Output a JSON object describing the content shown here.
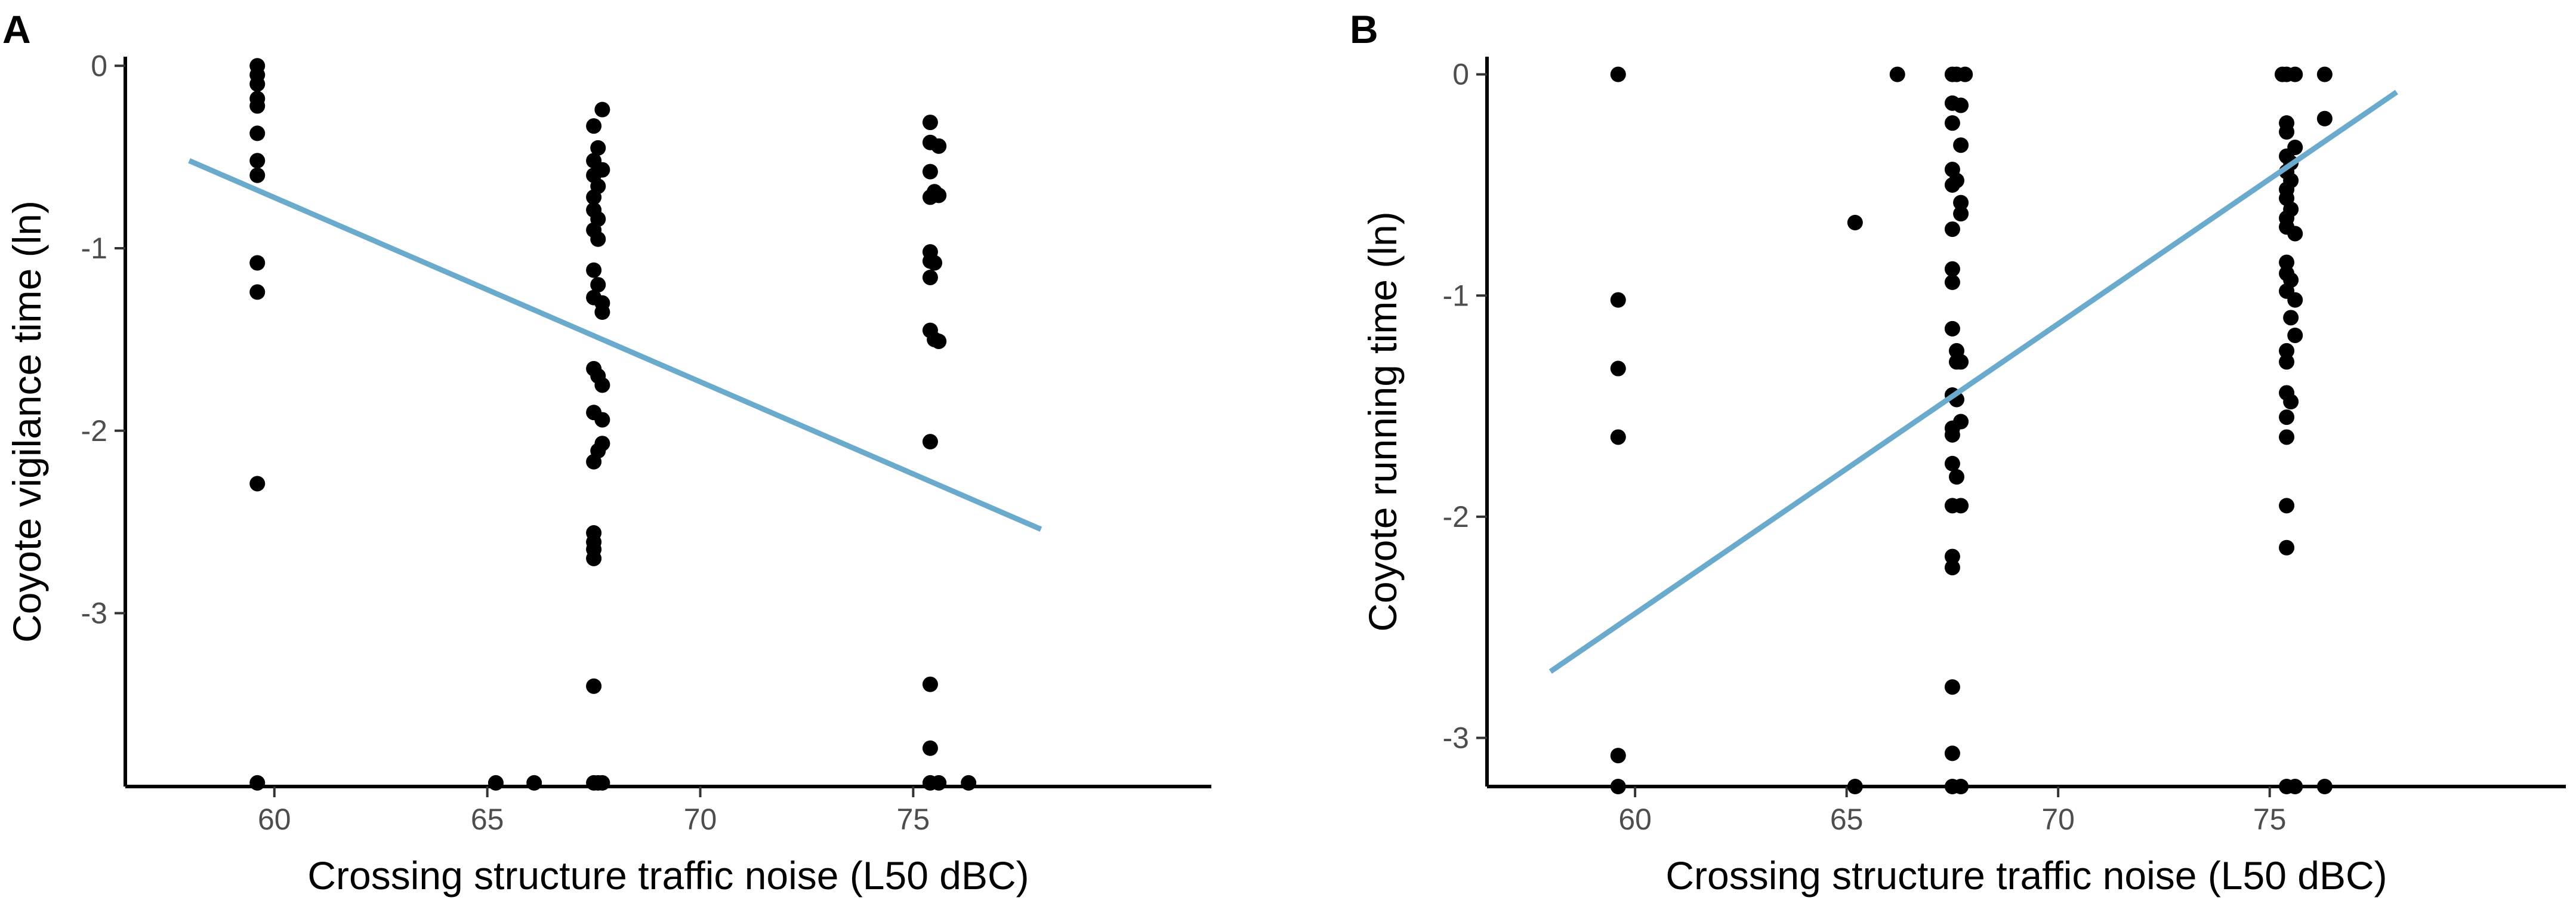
{
  "chart_data": [
    {
      "panel_label": "A",
      "type": "scatter",
      "title": "",
      "xlabel": "Crossing structure traffic noise (L50 dBC)",
      "ylabel": "Coyote vigilance time (ln)",
      "xlim": [
        56.5,
        82
      ],
      "ylim": [
        -3.95,
        0.05
      ],
      "xticks": [
        60,
        65,
        70,
        75
      ],
      "yticks": [
        0,
        -1,
        -2,
        -3
      ],
      "xtick_labels": [
        "60",
        "65",
        "70",
        "75"
      ],
      "ytick_labels": [
        "0",
        "-1",
        "-2",
        "-3"
      ],
      "grid": false,
      "points_color": "#000000",
      "fit_color": "#6aaacd",
      "points": [
        {
          "x": 59.6,
          "y": 0
        },
        {
          "x": 59.6,
          "y": -0.05
        },
        {
          "x": 59.6,
          "y": -0.1
        },
        {
          "x": 59.6,
          "y": -0.18
        },
        {
          "x": 59.6,
          "y": -0.22
        },
        {
          "x": 59.6,
          "y": -0.37
        },
        {
          "x": 59.6,
          "y": -0.52
        },
        {
          "x": 59.6,
          "y": -0.6
        },
        {
          "x": 59.6,
          "y": -1.08
        },
        {
          "x": 59.6,
          "y": -1.24
        },
        {
          "x": 59.6,
          "y": -2.29
        },
        {
          "x": 59.6,
          "y": -3.93
        },
        {
          "x": 65.2,
          "y": -3.93
        },
        {
          "x": 66.1,
          "y": -3.93
        },
        {
          "x": 67.7,
          "y": -0.24
        },
        {
          "x": 67.5,
          "y": -0.33
        },
        {
          "x": 67.6,
          "y": -0.45
        },
        {
          "x": 67.5,
          "y": -0.52
        },
        {
          "x": 67.7,
          "y": -0.57
        },
        {
          "x": 67.5,
          "y": -0.6
        },
        {
          "x": 67.6,
          "y": -0.66
        },
        {
          "x": 67.5,
          "y": -0.72
        },
        {
          "x": 67.5,
          "y": -0.79
        },
        {
          "x": 67.6,
          "y": -0.84
        },
        {
          "x": 67.5,
          "y": -0.9
        },
        {
          "x": 67.6,
          "y": -0.95
        },
        {
          "x": 67.5,
          "y": -1.12
        },
        {
          "x": 67.6,
          "y": -1.2
        },
        {
          "x": 67.5,
          "y": -1.27
        },
        {
          "x": 67.7,
          "y": -1.3
        },
        {
          "x": 67.7,
          "y": -1.35
        },
        {
          "x": 67.5,
          "y": -1.66
        },
        {
          "x": 67.6,
          "y": -1.7
        },
        {
          "x": 67.7,
          "y": -1.75
        },
        {
          "x": 67.5,
          "y": -1.9
        },
        {
          "x": 67.7,
          "y": -1.94
        },
        {
          "x": 67.7,
          "y": -2.07
        },
        {
          "x": 67.6,
          "y": -2.11
        },
        {
          "x": 67.5,
          "y": -2.17
        },
        {
          "x": 67.5,
          "y": -2.56
        },
        {
          "x": 67.5,
          "y": -2.61
        },
        {
          "x": 67.5,
          "y": -2.65
        },
        {
          "x": 67.5,
          "y": -2.7
        },
        {
          "x": 67.5,
          "y": -3.4
        },
        {
          "x": 67.5,
          "y": -3.93
        },
        {
          "x": 67.6,
          "y": -3.93
        },
        {
          "x": 67.7,
          "y": -3.93
        },
        {
          "x": 75.4,
          "y": -0.31
        },
        {
          "x": 75.4,
          "y": -0.42
        },
        {
          "x": 75.6,
          "y": -0.44
        },
        {
          "x": 75.4,
          "y": -0.58
        },
        {
          "x": 75.5,
          "y": -0.69
        },
        {
          "x": 75.4,
          "y": -0.72
        },
        {
          "x": 75.6,
          "y": -0.71
        },
        {
          "x": 75.4,
          "y": -1.02
        },
        {
          "x": 75.4,
          "y": -1.07
        },
        {
          "x": 75.5,
          "y": -1.08
        },
        {
          "x": 75.4,
          "y": -1.16
        },
        {
          "x": 75.4,
          "y": -1.45
        },
        {
          "x": 75.5,
          "y": -1.5
        },
        {
          "x": 75.6,
          "y": -1.51
        },
        {
          "x": 75.4,
          "y": -2.06
        },
        {
          "x": 75.4,
          "y": -3.39
        },
        {
          "x": 75.4,
          "y": -3.74
        },
        {
          "x": 75.4,
          "y": -3.93
        },
        {
          "x": 75.6,
          "y": -3.93
        },
        {
          "x": 76.3,
          "y": -3.93
        }
      ],
      "fit_line": {
        "x": [
          58,
          78
        ],
        "y": [
          -0.52,
          -2.54
        ]
      }
    },
    {
      "panel_label": "B",
      "type": "scatter",
      "title": "",
      "xlabel": "Crossing structure traffic noise (L50 dBC)",
      "ylabel": "Coyote running time (ln)",
      "xlim": [
        56.5,
        82
      ],
      "ylim": [
        -3.22,
        0.08
      ],
      "xticks": [
        60,
        65,
        70,
        75
      ],
      "yticks": [
        0,
        -1,
        -2,
        -3
      ],
      "xtick_labels": [
        "60",
        "65",
        "70",
        "75"
      ],
      "ytick_labels": [
        "0",
        "-1",
        "-2",
        "-3"
      ],
      "grid": false,
      "points_color": "#000000",
      "fit_color": "#6aaacd",
      "points": [
        {
          "x": 59.6,
          "y": 0
        },
        {
          "x": 59.6,
          "y": -1.02
        },
        {
          "x": 59.6,
          "y": -1.33
        },
        {
          "x": 59.6,
          "y": -1.64
        },
        {
          "x": 59.6,
          "y": -3.08
        },
        {
          "x": 59.6,
          "y": -3.22
        },
        {
          "x": 65.2,
          "y": -0.67
        },
        {
          "x": 65.2,
          "y": -3.22
        },
        {
          "x": 66.2,
          "y": 0
        },
        {
          "x": 67.5,
          "y": 0
        },
        {
          "x": 67.6,
          "y": 0
        },
        {
          "x": 67.8,
          "y": 0
        },
        {
          "x": 67.5,
          "y": -0.13
        },
        {
          "x": 67.7,
          "y": -0.14
        },
        {
          "x": 67.5,
          "y": -0.22
        },
        {
          "x": 67.7,
          "y": -0.32
        },
        {
          "x": 67.5,
          "y": -0.43
        },
        {
          "x": 67.6,
          "y": -0.48
        },
        {
          "x": 67.5,
          "y": -0.5
        },
        {
          "x": 67.7,
          "y": -0.58
        },
        {
          "x": 67.7,
          "y": -0.63
        },
        {
          "x": 67.5,
          "y": -0.7
        },
        {
          "x": 67.5,
          "y": -0.88
        },
        {
          "x": 67.5,
          "y": -0.94
        },
        {
          "x": 67.5,
          "y": -1.15
        },
        {
          "x": 67.6,
          "y": -1.25
        },
        {
          "x": 67.6,
          "y": -1.3
        },
        {
          "x": 67.7,
          "y": -1.3
        },
        {
          "x": 67.5,
          "y": -1.45
        },
        {
          "x": 67.6,
          "y": -1.47
        },
        {
          "x": 67.7,
          "y": -1.57
        },
        {
          "x": 67.5,
          "y": -1.6
        },
        {
          "x": 67.5,
          "y": -1.63
        },
        {
          "x": 67.5,
          "y": -1.76
        },
        {
          "x": 67.6,
          "y": -1.82
        },
        {
          "x": 67.5,
          "y": -1.95
        },
        {
          "x": 67.7,
          "y": -1.95
        },
        {
          "x": 67.5,
          "y": -2.18
        },
        {
          "x": 67.5,
          "y": -2.23
        },
        {
          "x": 67.5,
          "y": -2.77
        },
        {
          "x": 67.5,
          "y": -3.07
        },
        {
          "x": 67.5,
          "y": -3.22
        },
        {
          "x": 67.7,
          "y": -3.22
        },
        {
          "x": 75.3,
          "y": 0
        },
        {
          "x": 75.4,
          "y": 0
        },
        {
          "x": 75.6,
          "y": 0
        },
        {
          "x": 75.4,
          "y": -0.22
        },
        {
          "x": 75.4,
          "y": -0.26
        },
        {
          "x": 75.6,
          "y": -0.33
        },
        {
          "x": 75.4,
          "y": -0.37
        },
        {
          "x": 75.5,
          "y": -0.4
        },
        {
          "x": 75.4,
          "y": -0.44
        },
        {
          "x": 75.5,
          "y": -0.48
        },
        {
          "x": 75.4,
          "y": -0.52
        },
        {
          "x": 75.4,
          "y": -0.56
        },
        {
          "x": 75.5,
          "y": -0.61
        },
        {
          "x": 75.4,
          "y": -0.65
        },
        {
          "x": 75.4,
          "y": -0.69
        },
        {
          "x": 75.6,
          "y": -0.72
        },
        {
          "x": 75.4,
          "y": -0.85
        },
        {
          "x": 75.4,
          "y": -0.9
        },
        {
          "x": 75.5,
          "y": -0.93
        },
        {
          "x": 75.4,
          "y": -0.98
        },
        {
          "x": 75.6,
          "y": -1.02
        },
        {
          "x": 75.5,
          "y": -1.1
        },
        {
          "x": 75.6,
          "y": -1.18
        },
        {
          "x": 75.4,
          "y": -1.25
        },
        {
          "x": 75.4,
          "y": -1.3
        },
        {
          "x": 75.4,
          "y": -1.44
        },
        {
          "x": 75.5,
          "y": -1.48
        },
        {
          "x": 75.4,
          "y": -1.55
        },
        {
          "x": 75.4,
          "y": -1.64
        },
        {
          "x": 75.4,
          "y": -1.95
        },
        {
          "x": 75.4,
          "y": -2.14
        },
        {
          "x": 75.4,
          "y": -3.22
        },
        {
          "x": 75.6,
          "y": -3.22
        },
        {
          "x": 76.3,
          "y": 0
        },
        {
          "x": 76.3,
          "y": -0.2
        },
        {
          "x": 76.3,
          "y": -3.22
        }
      ],
      "fit_line": {
        "x": [
          58,
          78
        ],
        "y": [
          -2.7,
          -0.08
        ]
      }
    }
  ]
}
